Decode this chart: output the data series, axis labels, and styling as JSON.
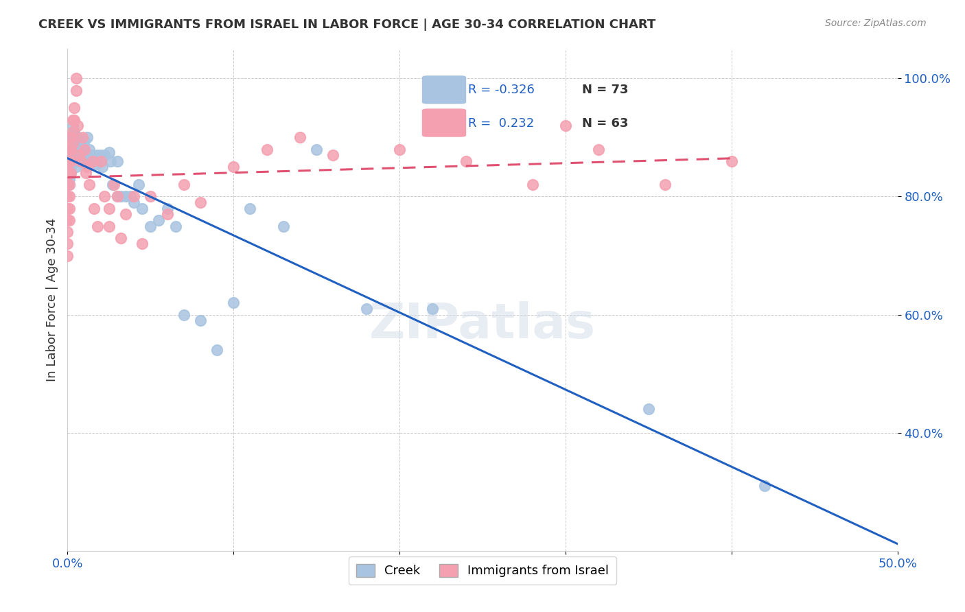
{
  "title": "CREEK VS IMMIGRANTS FROM ISRAEL IN LABOR FORCE | AGE 30-34 CORRELATION CHART",
  "source": "Source: ZipAtlas.com",
  "ylabel": "In Labor Force | Age 30-34",
  "xlabel": "",
  "xlim": [
    0.0,
    0.5
  ],
  "ylim": [
    0.2,
    1.05
  ],
  "xticks": [
    0.0,
    0.1,
    0.2,
    0.3,
    0.4,
    0.5
  ],
  "xticklabels": [
    "0.0%",
    "",
    "",
    "",
    "",
    "50.0%"
  ],
  "yticks": [
    0.4,
    0.6,
    0.8,
    1.0
  ],
  "yticklabels": [
    "40.0%",
    "60.0%",
    "80.0%",
    "100.0%"
  ],
  "creek_R": -0.326,
  "creek_N": 73,
  "israel_R": 0.232,
  "israel_N": 63,
  "creek_color": "#a8c4e0",
  "israel_color": "#f4a0b0",
  "creek_line_color": "#2060c0",
  "israel_line_color": "#e05070",
  "watermark": "ZIPatlas",
  "creek_x": [
    0.0,
    0.0,
    0.0,
    0.0,
    0.0,
    0.0,
    0.0,
    0.0,
    0.001,
    0.001,
    0.001,
    0.001,
    0.001,
    0.002,
    0.002,
    0.002,
    0.002,
    0.002,
    0.003,
    0.003,
    0.003,
    0.003,
    0.004,
    0.004,
    0.005,
    0.005,
    0.005,
    0.006,
    0.007,
    0.007,
    0.008,
    0.008,
    0.009,
    0.01,
    0.01,
    0.01,
    0.012,
    0.012,
    0.013,
    0.014,
    0.015,
    0.016,
    0.017,
    0.018,
    0.02,
    0.021,
    0.022,
    0.025,
    0.026,
    0.027,
    0.03,
    0.03,
    0.032,
    0.035,
    0.038,
    0.04,
    0.043,
    0.045,
    0.05,
    0.055,
    0.06,
    0.065,
    0.07,
    0.08,
    0.09,
    0.1,
    0.11,
    0.13,
    0.15,
    0.18,
    0.22,
    0.35,
    0.42
  ],
  "creek_y": [
    0.868,
    0.862,
    0.855,
    0.848,
    0.843,
    0.838,
    0.83,
    0.82,
    0.86,
    0.85,
    0.84,
    0.83,
    0.82,
    0.9,
    0.88,
    0.86,
    0.85,
    0.84,
    0.92,
    0.9,
    0.88,
    0.87,
    0.91,
    0.895,
    0.87,
    0.86,
    0.85,
    0.9,
    0.88,
    0.86,
    0.89,
    0.87,
    0.86,
    0.895,
    0.88,
    0.86,
    0.9,
    0.87,
    0.88,
    0.86,
    0.87,
    0.86,
    0.855,
    0.87,
    0.87,
    0.85,
    0.87,
    0.875,
    0.86,
    0.82,
    0.8,
    0.86,
    0.8,
    0.8,
    0.8,
    0.79,
    0.82,
    0.78,
    0.75,
    0.76,
    0.78,
    0.75,
    0.6,
    0.59,
    0.54,
    0.62,
    0.78,
    0.75,
    0.88,
    0.61,
    0.61,
    0.44,
    0.31
  ],
  "israel_x": [
    0.0,
    0.0,
    0.0,
    0.0,
    0.0,
    0.0,
    0.0,
    0.0,
    0.0,
    0.001,
    0.001,
    0.001,
    0.001,
    0.001,
    0.001,
    0.001,
    0.002,
    0.002,
    0.002,
    0.002,
    0.003,
    0.003,
    0.003,
    0.004,
    0.004,
    0.005,
    0.005,
    0.006,
    0.007,
    0.008,
    0.009,
    0.01,
    0.011,
    0.012,
    0.013,
    0.015,
    0.016,
    0.018,
    0.02,
    0.022,
    0.025,
    0.025,
    0.028,
    0.03,
    0.032,
    0.035,
    0.04,
    0.045,
    0.05,
    0.06,
    0.07,
    0.08,
    0.1,
    0.12,
    0.14,
    0.16,
    0.2,
    0.24,
    0.28,
    0.3,
    0.32,
    0.36,
    0.4
  ],
  "israel_y": [
    0.86,
    0.84,
    0.82,
    0.8,
    0.78,
    0.76,
    0.74,
    0.72,
    0.7,
    0.88,
    0.86,
    0.84,
    0.82,
    0.8,
    0.78,
    0.76,
    0.9,
    0.88,
    0.86,
    0.84,
    0.93,
    0.91,
    0.89,
    0.95,
    0.93,
    1.0,
    0.98,
    0.92,
    0.87,
    0.86,
    0.9,
    0.88,
    0.84,
    0.85,
    0.82,
    0.86,
    0.78,
    0.75,
    0.86,
    0.8,
    0.78,
    0.75,
    0.82,
    0.8,
    0.73,
    0.77,
    0.8,
    0.72,
    0.8,
    0.77,
    0.82,
    0.79,
    0.85,
    0.88,
    0.9,
    0.87,
    0.88,
    0.86,
    0.82,
    0.92,
    0.88,
    0.82,
    0.86
  ]
}
